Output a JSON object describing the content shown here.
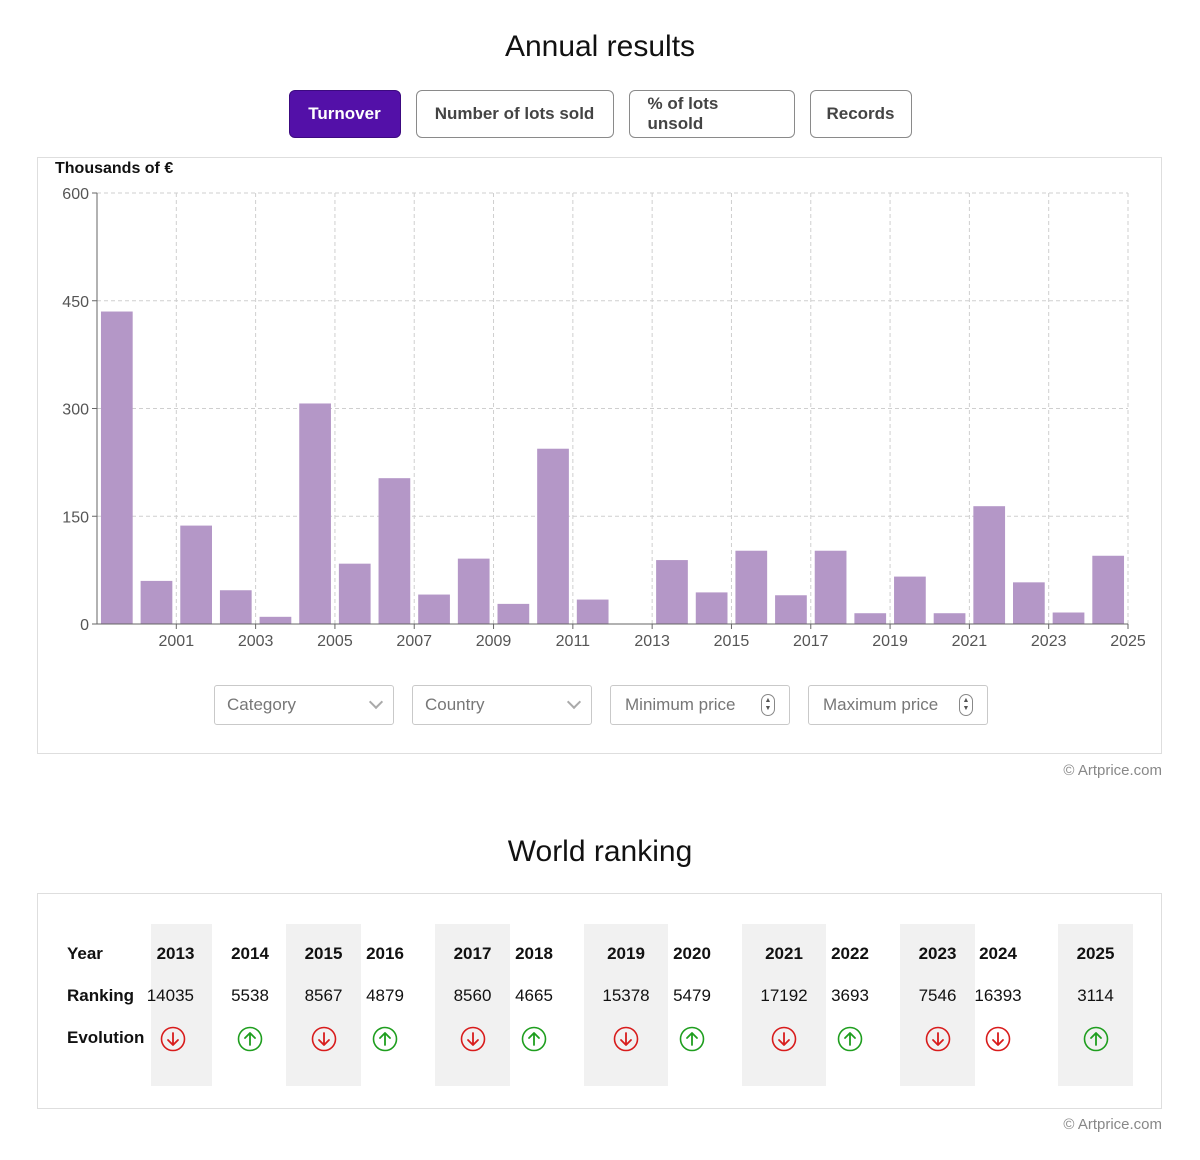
{
  "annual": {
    "title": "Annual results",
    "tabs": [
      {
        "label": "Turnover",
        "active": true
      },
      {
        "label": "Number of lots sold",
        "active": false
      },
      {
        "label": "% of lots unsold",
        "active": false
      },
      {
        "label": "Records",
        "active": false
      }
    ],
    "filters": {
      "category_placeholder": "Category",
      "country_placeholder": "Country",
      "min_price_placeholder": "Minimum price",
      "max_price_placeholder": "Maximum price"
    },
    "credit": "© Artprice.com"
  },
  "chart_data": {
    "type": "bar",
    "ylabel": "Thousands of €",
    "ylim": [
      0,
      600
    ],
    "yticks": [
      0,
      150,
      300,
      450,
      600
    ],
    "xticks": [
      "2001",
      "2003",
      "2005",
      "2007",
      "2009",
      "2011",
      "2013",
      "2015",
      "2017",
      "2019",
      "2021",
      "2023",
      "2025"
    ],
    "categories": [
      "2000",
      "2001",
      "2002",
      "2003",
      "2004",
      "2005",
      "2006",
      "2007",
      "2008",
      "2009",
      "2010",
      "2011",
      "2012",
      "2013",
      "2014",
      "2015",
      "2016",
      "2017",
      "2018",
      "2019",
      "2020",
      "2021",
      "2022",
      "2023",
      "2024",
      "2025"
    ],
    "values": [
      435,
      60,
      137,
      47,
      10,
      307,
      84,
      203,
      41,
      91,
      28,
      244,
      34,
      0,
      89,
      44,
      102,
      40,
      102,
      15,
      66,
      15,
      164,
      58,
      16,
      95
    ],
    "bar_color": "#b497c7",
    "grid": true
  },
  "world": {
    "title": "World ranking",
    "labels": {
      "year": "Year",
      "ranking": "Ranking",
      "evolution": "Evolution"
    },
    "columns": [
      {
        "year": "2013",
        "ranking": "14035",
        "evolution": "down"
      },
      {
        "year": "2014",
        "ranking": "5538",
        "evolution": "up"
      },
      {
        "year": "2015",
        "ranking": "8567",
        "evolution": "down"
      },
      {
        "year": "2016",
        "ranking": "4879",
        "evolution": "up"
      },
      {
        "year": "2017",
        "ranking": "8560",
        "evolution": "down"
      },
      {
        "year": "2018",
        "ranking": "4665",
        "evolution": "up"
      },
      {
        "year": "2019",
        "ranking": "15378",
        "evolution": "down"
      },
      {
        "year": "2020",
        "ranking": "5479",
        "evolution": "up"
      },
      {
        "year": "2021",
        "ranking": "17192",
        "evolution": "down"
      },
      {
        "year": "2022",
        "ranking": "3693",
        "evolution": "up"
      },
      {
        "year": "2023",
        "ranking": "7546",
        "evolution": "down"
      },
      {
        "year": "2024",
        "ranking": "16393",
        "evolution": "down"
      },
      {
        "year": "2025",
        "ranking": "3114",
        "evolution": "up"
      }
    ],
    "colors": {
      "up": "#1e9e1e",
      "down": "#d81b1b"
    },
    "credit": "© Artprice.com"
  }
}
